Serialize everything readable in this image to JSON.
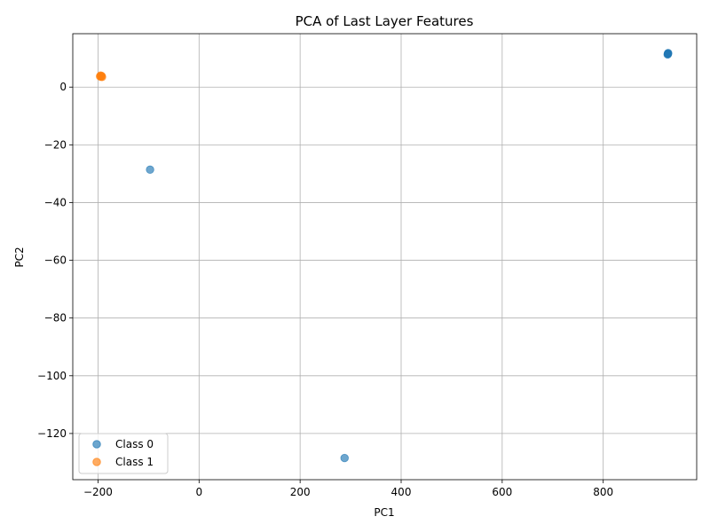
{
  "chart_data": {
    "type": "scatter",
    "title": "PCA of Last Layer Features",
    "xlabel": "PC1",
    "ylabel": "PC2",
    "xlim": [
      -250,
      985
    ],
    "ylim": [
      -136,
      18.5
    ],
    "xticks": [
      -200,
      0,
      200,
      400,
      600,
      800
    ],
    "yticks": [
      -120,
      -100,
      -80,
      -60,
      -40,
      -20,
      0
    ],
    "grid": true,
    "legend_position": "lower-left",
    "series": [
      {
        "name": "Class 0",
        "color": "#1f77b4",
        "points": [
          {
            "x": 928,
            "y": 11.5
          },
          {
            "x": 928.5,
            "y": 11.8
          },
          {
            "x": 927.5,
            "y": 11.3
          },
          {
            "x": 928.2,
            "y": 11.6
          },
          {
            "x": -97,
            "y": -28.6
          },
          {
            "x": 288,
            "y": -128.5
          }
        ]
      },
      {
        "name": "Class 1",
        "color": "#ff7f0e",
        "points": [
          {
            "x": -195,
            "y": 4.0
          },
          {
            "x": -194,
            "y": 3.6
          },
          {
            "x": -193,
            "y": 3.9
          },
          {
            "x": -196,
            "y": 3.7
          },
          {
            "x": -192,
            "y": 3.5
          }
        ]
      }
    ]
  }
}
